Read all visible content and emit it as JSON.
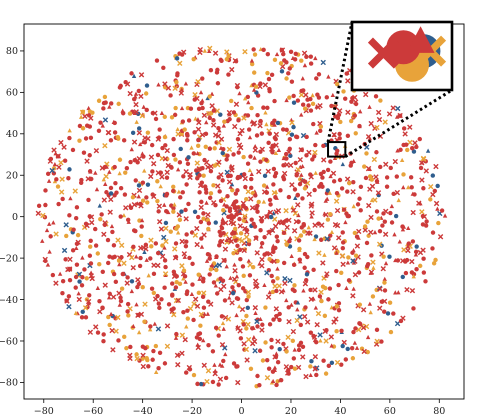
{
  "chart_data": {
    "type": "scatter",
    "title": "",
    "xlabel": "",
    "ylabel": "",
    "xlim": [
      -88,
      90
    ],
    "ylim": [
      -88,
      93
    ],
    "x_ticks": [
      -80,
      -60,
      -40,
      -20,
      0,
      20,
      40,
      60,
      80
    ],
    "y_ticks": [
      -80,
      -60,
      -40,
      -20,
      0,
      20,
      40,
      60,
      80
    ],
    "grid": false,
    "legend": "none",
    "series_colors": {
      "red": "#cc3a3a",
      "orange": "#e8a33a",
      "blue": "#2f5e8e"
    },
    "cloud": {
      "center": [
        0,
        0
      ],
      "radius": 85,
      "approx_point_count": 1900,
      "marker_shapes": [
        "circle",
        "cross",
        "triangle"
      ]
    },
    "highlight_box": {
      "x_range": [
        35,
        42
      ],
      "y_range": [
        29,
        36
      ],
      "inset_points": [
        {
          "shape": "circle",
          "color": "blue",
          "x": 40,
          "y": 33
        },
        {
          "shape": "circle",
          "color": "orange",
          "x": 39.2,
          "y": 31.6
        },
        {
          "shape": "cross",
          "color": "orange",
          "x": 40.5,
          "y": 33
        },
        {
          "shape": "circle",
          "color": "red",
          "x": 38.6,
          "y": 33.4
        },
        {
          "shape": "triangle",
          "color": "red",
          "x": 39.8,
          "y": 33.9
        },
        {
          "shape": "cross",
          "color": "red",
          "x": 37.2,
          "y": 32.8
        }
      ]
    }
  }
}
